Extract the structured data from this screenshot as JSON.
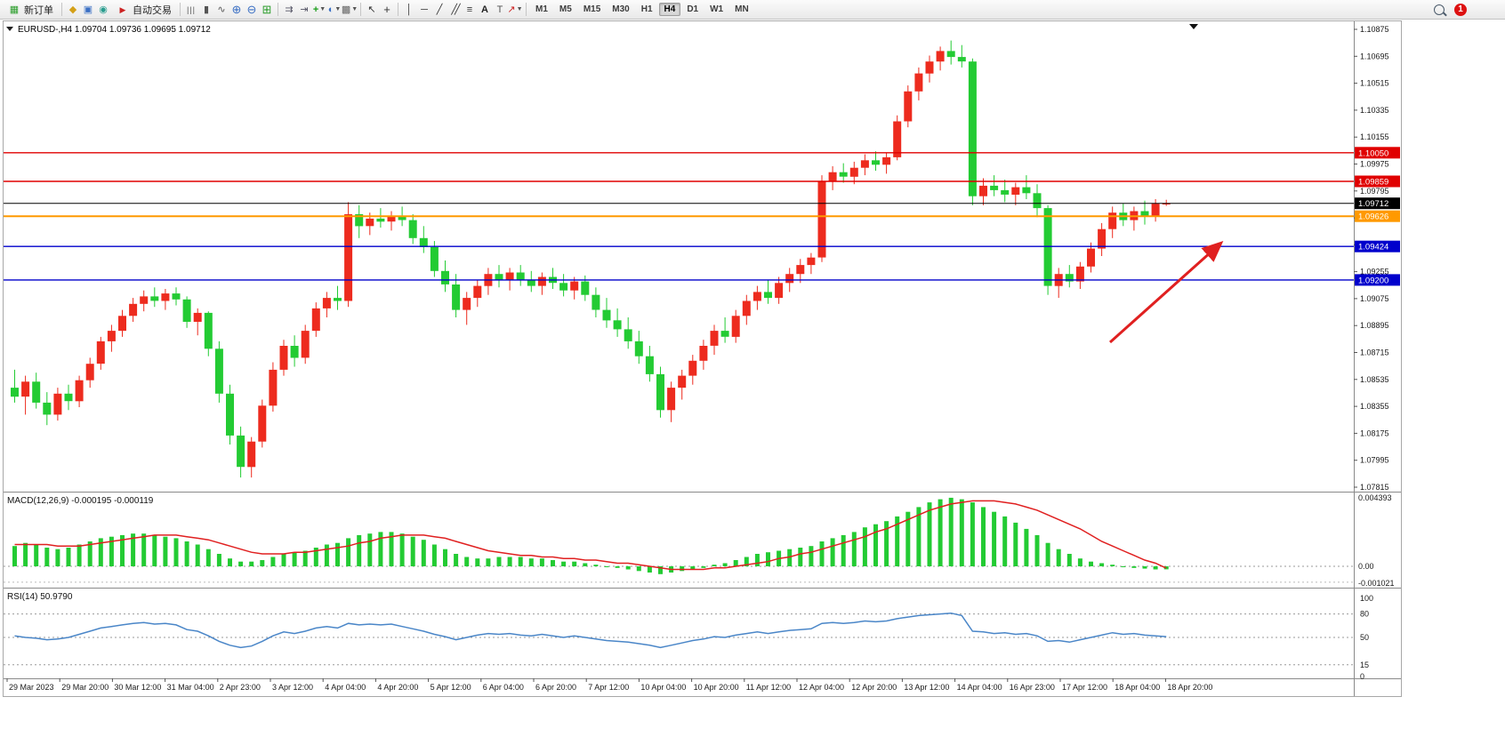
{
  "toolbar": {
    "new_order_label": "新订单",
    "autotrading_label": "自动交易",
    "text_tool_label": "A",
    "label_tool_label": "T",
    "timeframes": [
      "M1",
      "M5",
      "M15",
      "M30",
      "H1",
      "H4",
      "D1",
      "W1",
      "MN"
    ],
    "active_timeframe": "H4",
    "notification_count": "1"
  },
  "chart_data": {
    "type": "candlestick",
    "symbol_title": "EURUSD-,H4",
    "ohlc_text": "1.09704 1.09736 1.09695 1.09712",
    "current_price": 1.09712,
    "price_axis": {
      "min": 1.07815,
      "max": 1.10875,
      "ticks": [
        "1.10875",
        "1.10695",
        "1.10515",
        "1.10335",
        "1.10155",
        "1.09975",
        "1.09795",
        "1.09615",
        "1.09435",
        "1.09255",
        "1.09075",
        "1.08895",
        "1.08715",
        "1.08535",
        "1.08355",
        "1.08175",
        "1.07995",
        "1.07815"
      ]
    },
    "time_labels": [
      "29 Mar 2023",
      "29 Mar 20:00",
      "30 Mar 12:00",
      "31 Mar 04:00",
      "2 Apr 23:00",
      "3 Apr 12:00",
      "4 Apr 04:00",
      "4 Apr 20:00",
      "5 Apr 12:00",
      "6 Apr 04:00",
      "6 Apr 20:00",
      "7 Apr 12:00",
      "10 Apr 04:00",
      "10 Apr 20:00",
      "11 Apr 12:00",
      "12 Apr 04:00",
      "12 Apr 20:00",
      "13 Apr 12:00",
      "14 Apr 04:00",
      "16 Apr 23:00",
      "17 Apr 12:00",
      "18 Apr 04:00",
      "18 Apr 20:00"
    ],
    "levels": [
      {
        "label": "1.10050",
        "value": 1.1005,
        "color": "#e00000",
        "width": 1.4
      },
      {
        "label": "1.09859",
        "value": 1.09859,
        "color": "#e00000",
        "width": 1.4
      },
      {
        "label": "1.09712",
        "value": 1.09712,
        "color": "#000000",
        "width": 1,
        "current": true
      },
      {
        "label": "1.09626",
        "value": 1.09626,
        "color": "#ff9900",
        "width": 2
      },
      {
        "label": "1.09424",
        "value": 1.09424,
        "color": "#0000cc",
        "width": 1.4
      },
      {
        "label": "1.09200",
        "value": 1.092,
        "color": "#0000cc",
        "width": 1.4
      }
    ],
    "annotations": {
      "trend_arrow": {
        "from": [
          1248,
          385
        ],
        "to": [
          1372,
          274
        ]
      }
    },
    "candles": [
      [
        1.0848,
        1.086,
        1.0838,
        1.0842
      ],
      [
        1.0842,
        1.0856,
        1.083,
        1.0852
      ],
      [
        1.0852,
        1.0858,
        1.0834,
        1.0838
      ],
      [
        1.0838,
        1.0845,
        1.0823,
        1.083
      ],
      [
        1.083,
        1.0848,
        1.0826,
        1.0844
      ],
      [
        1.0844,
        1.085,
        1.0833,
        1.0839
      ],
      [
        1.0839,
        1.0856,
        1.0835,
        1.0853
      ],
      [
        1.0853,
        1.0868,
        1.0848,
        1.0864
      ],
      [
        1.0864,
        1.0882,
        1.086,
        1.0879
      ],
      [
        1.0879,
        1.089,
        1.0872,
        1.0886
      ],
      [
        1.0886,
        1.09,
        1.0882,
        1.0896
      ],
      [
        1.0896,
        1.0908,
        1.0892,
        1.0904
      ],
      [
        1.0904,
        1.0913,
        1.0899,
        1.0909
      ],
      [
        1.0909,
        1.0915,
        1.0902,
        1.0906
      ],
      [
        1.0906,
        1.0914,
        1.09,
        1.0911
      ],
      [
        1.0911,
        1.0915,
        1.0903,
        1.0907
      ],
      [
        1.0907,
        1.0909,
        1.0888,
        1.0892
      ],
      [
        1.0892,
        1.0901,
        1.0883,
        1.0898
      ],
      [
        1.0898,
        1.0899,
        1.0869,
        1.0874
      ],
      [
        1.0874,
        1.0879,
        1.0838,
        1.0844
      ],
      [
        1.0844,
        1.085,
        1.081,
        1.0816
      ],
      [
        1.0816,
        1.0822,
        1.0788,
        1.0795
      ],
      [
        1.0795,
        1.0815,
        1.0788,
        1.0812
      ],
      [
        1.0812,
        1.084,
        1.0808,
        1.0836
      ],
      [
        1.0836,
        1.0865,
        1.0832,
        1.086
      ],
      [
        1.086,
        1.088,
        1.0856,
        1.0876
      ],
      [
        1.0876,
        1.0883,
        1.0862,
        1.0868
      ],
      [
        1.0868,
        1.089,
        1.0864,
        1.0886
      ],
      [
        1.0886,
        1.0905,
        1.0882,
        1.0901
      ],
      [
        1.0901,
        1.0912,
        1.0895,
        1.0908
      ],
      [
        1.0908,
        1.0916,
        1.09,
        1.0906
      ],
      [
        1.0906,
        1.0972,
        1.0902,
        1.0964
      ],
      [
        1.0964,
        1.097,
        1.0948,
        1.0956
      ],
      [
        1.0956,
        1.0965,
        1.095,
        1.0961
      ],
      [
        1.0961,
        1.0968,
        1.0955,
        1.0959
      ],
      [
        1.0959,
        1.0966,
        1.0953,
        1.0963
      ],
      [
        1.0963,
        1.0969,
        1.0956,
        1.096
      ],
      [
        1.096,
        1.0964,
        1.0944,
        1.0948
      ],
      [
        1.0948,
        1.0956,
        1.0938,
        1.0942
      ],
      [
        1.0942,
        1.0946,
        1.0922,
        1.0926
      ],
      [
        1.0926,
        1.0933,
        1.0912,
        1.0917
      ],
      [
        1.0917,
        1.0924,
        1.0895,
        1.09
      ],
      [
        1.09,
        1.0912,
        1.089,
        1.0908
      ],
      [
        1.0908,
        1.092,
        1.0902,
        1.0916
      ],
      [
        1.0916,
        1.0928,
        1.091,
        1.0924
      ],
      [
        1.0924,
        1.093,
        1.0915,
        1.092
      ],
      [
        1.092,
        1.0928,
        1.0913,
        1.0925
      ],
      [
        1.0925,
        1.093,
        1.0916,
        1.092
      ],
      [
        1.092,
        1.0926,
        1.0912,
        1.0916
      ],
      [
        1.0916,
        1.0925,
        1.091,
        1.0922
      ],
      [
        1.0922,
        1.0928,
        1.0914,
        1.0918
      ],
      [
        1.0918,
        1.0924,
        1.0909,
        1.0913
      ],
      [
        1.0913,
        1.0922,
        1.0907,
        1.0919
      ],
      [
        1.0919,
        1.0923,
        1.0906,
        1.091
      ],
      [
        1.091,
        1.0915,
        1.0895,
        1.09
      ],
      [
        1.09,
        1.0908,
        1.0888,
        1.0893
      ],
      [
        1.0893,
        1.0901,
        1.0882,
        1.0887
      ],
      [
        1.0887,
        1.0895,
        1.0874,
        1.0879
      ],
      [
        1.0879,
        1.0886,
        1.0864,
        1.0869
      ],
      [
        1.0869,
        1.0876,
        1.0852,
        1.0857
      ],
      [
        1.0857,
        1.0862,
        1.0828,
        1.0833
      ],
      [
        1.0833,
        1.0852,
        1.0825,
        1.0848
      ],
      [
        1.0848,
        1.086,
        1.084,
        1.0856
      ],
      [
        1.0856,
        1.087,
        1.085,
        1.0866
      ],
      [
        1.0866,
        1.088,
        1.086,
        1.0876
      ],
      [
        1.0876,
        1.089,
        1.087,
        1.0886
      ],
      [
        1.0886,
        1.0895,
        1.0878,
        1.0882
      ],
      [
        1.0882,
        1.09,
        1.0878,
        1.0896
      ],
      [
        1.0896,
        1.091,
        1.089,
        1.0906
      ],
      [
        1.0906,
        1.0916,
        1.09,
        1.0912
      ],
      [
        1.0912,
        1.092,
        1.0904,
        1.0908
      ],
      [
        1.0908,
        1.0922,
        1.0904,
        1.0918
      ],
      [
        1.0918,
        1.0928,
        1.0912,
        1.0924
      ],
      [
        1.0924,
        1.0934,
        1.0918,
        1.093
      ],
      [
        1.093,
        1.0938,
        1.0924,
        1.0935
      ],
      [
        1.0935,
        1.099,
        1.0932,
        1.0986
      ],
      [
        1.0986,
        1.0996,
        1.098,
        1.0992
      ],
      [
        1.0992,
        1.0998,
        1.0985,
        1.0989
      ],
      [
        1.0989,
        1.0999,
        1.0984,
        1.0995
      ],
      [
        1.0995,
        1.1004,
        1.099,
        1.1
      ],
      [
        1.1,
        1.1006,
        1.0993,
        1.0997
      ],
      [
        1.0997,
        1.1005,
        1.0991,
        1.1002
      ],
      [
        1.1002,
        1.103,
        1.1,
        1.1026
      ],
      [
        1.1026,
        1.105,
        1.1022,
        1.1046
      ],
      [
        1.1046,
        1.1062,
        1.104,
        1.1058
      ],
      [
        1.1058,
        1.107,
        1.1052,
        1.1066
      ],
      [
        1.1066,
        1.1076,
        1.106,
        1.1073
      ],
      [
        1.1073,
        1.108,
        1.1064,
        1.1069
      ],
      [
        1.1069,
        1.1077,
        1.1062,
        1.1066
      ],
      [
        1.1066,
        1.1068,
        1.097,
        1.0976
      ],
      [
        1.0976,
        1.0988,
        1.097,
        1.0983
      ],
      [
        1.0983,
        1.099,
        1.0976,
        1.098
      ],
      [
        1.098,
        1.0987,
        1.0972,
        1.0977
      ],
      [
        1.0977,
        1.0985,
        1.097,
        1.0982
      ],
      [
        1.0982,
        1.099,
        1.0974,
        1.0978
      ],
      [
        1.0978,
        1.0984,
        1.0962,
        1.0968
      ],
      [
        1.0968,
        1.097,
        1.091,
        1.0916
      ],
      [
        1.0916,
        1.0928,
        1.0908,
        1.0924
      ],
      [
        1.0924,
        1.093,
        1.0915,
        1.0919
      ],
      [
        1.0919,
        1.0932,
        1.0914,
        1.0929
      ],
      [
        1.0929,
        1.0945,
        1.0925,
        1.0941
      ],
      [
        1.0941,
        1.0958,
        1.0936,
        1.0954
      ],
      [
        1.0954,
        1.0969,
        1.0948,
        1.0965
      ],
      [
        1.0965,
        1.0971,
        1.0956,
        1.096
      ],
      [
        1.096,
        1.0969,
        1.0953,
        1.0966
      ],
      [
        1.0966,
        1.0973,
        1.0957,
        1.0963
      ],
      [
        1.0963,
        1.0974,
        1.0959,
        1.0971
      ],
      [
        1.09704,
        1.09736,
        1.09695,
        1.09712
      ]
    ],
    "indicators": {
      "macd": {
        "label": "MACD(12,26,9)",
        "values_text": "-0.000195 -0.000119",
        "axis": [
          "0.004393",
          "0.00",
          "-0.001021"
        ],
        "range": {
          "max": 0.004393,
          "min": -0.001021
        },
        "histogram": [
          0.0013,
          0.0015,
          0.0014,
          0.0012,
          0.0011,
          0.0012,
          0.0014,
          0.0016,
          0.0018,
          0.0019,
          0.002,
          0.0021,
          0.0021,
          0.002,
          0.0019,
          0.0018,
          0.0016,
          0.0014,
          0.0011,
          0.0008,
          0.0005,
          0.0003,
          0.0003,
          0.0004,
          0.0006,
          0.0008,
          0.0009,
          0.001,
          0.0012,
          0.0014,
          0.0015,
          0.0018,
          0.002,
          0.0021,
          0.0022,
          0.0022,
          0.0021,
          0.0019,
          0.0017,
          0.0014,
          0.0011,
          0.0008,
          0.0006,
          0.0005,
          0.0005,
          0.0006,
          0.0006,
          0.0006,
          0.0005,
          0.0005,
          0.0004,
          0.0003,
          0.0003,
          0.0002,
          0.0001,
          0.0,
          -0.0001,
          -0.0002,
          -0.0003,
          -0.0004,
          -0.0005,
          -0.0004,
          -0.0003,
          -0.0002,
          -0.0001,
          0.0001,
          0.0002,
          0.0004,
          0.0006,
          0.0008,
          0.0009,
          0.001,
          0.0011,
          0.0012,
          0.0013,
          0.0016,
          0.0018,
          0.002,
          0.0022,
          0.0025,
          0.0027,
          0.0029,
          0.0032,
          0.0035,
          0.0038,
          0.0041,
          0.0043,
          0.0044,
          0.0043,
          0.0041,
          0.0038,
          0.0035,
          0.0032,
          0.0028,
          0.0024,
          0.002,
          0.0015,
          0.0011,
          0.0008,
          0.0005,
          0.0003,
          0.0002,
          0.0001,
          0.0,
          -0.0001,
          -0.00015,
          -0.0002,
          -0.000195
        ],
        "signal": [
          0.0014,
          0.0014,
          0.0014,
          0.0014,
          0.0013,
          0.0013,
          0.0013,
          0.0014,
          0.0015,
          0.0016,
          0.0017,
          0.0018,
          0.0019,
          0.002,
          0.002,
          0.002,
          0.0019,
          0.0018,
          0.0017,
          0.0015,
          0.0013,
          0.0011,
          0.0009,
          0.0008,
          0.0008,
          0.0008,
          0.0009,
          0.0009,
          0.001,
          0.0011,
          0.0012,
          0.0013,
          0.0015,
          0.0016,
          0.0018,
          0.0019,
          0.002,
          0.002,
          0.002,
          0.0019,
          0.0018,
          0.0016,
          0.0014,
          0.0012,
          0.001,
          0.0009,
          0.0008,
          0.0007,
          0.0007,
          0.0006,
          0.0006,
          0.0005,
          0.0005,
          0.0004,
          0.0004,
          0.0003,
          0.0002,
          0.0002,
          0.0001,
          0.0,
          -0.0001,
          -0.0002,
          -0.0002,
          -0.0002,
          -0.0002,
          -0.0001,
          -0.0001,
          0.0,
          0.0001,
          0.0002,
          0.0003,
          0.0005,
          0.0006,
          0.0008,
          0.0009,
          0.0011,
          0.0013,
          0.0015,
          0.0017,
          0.0019,
          0.0022,
          0.0024,
          0.0027,
          0.003,
          0.0033,
          0.0036,
          0.0038,
          0.004,
          0.0041,
          0.0042,
          0.0042,
          0.0042,
          0.0041,
          0.004,
          0.0038,
          0.0036,
          0.0033,
          0.003,
          0.0027,
          0.0024,
          0.002,
          0.0016,
          0.0013,
          0.001,
          0.0007,
          0.0004,
          0.0002,
          -0.000119
        ]
      },
      "rsi": {
        "label": "RSI(14)",
        "value_text": "50.9790",
        "axis": [
          "100",
          "80",
          "50",
          "15",
          "0"
        ],
        "levels": [
          80,
          50,
          15
        ],
        "values": [
          52,
          50,
          49,
          47,
          48,
          50,
          54,
          58,
          62,
          64,
          66,
          68,
          69,
          67,
          68,
          66,
          60,
          58,
          52,
          45,
          40,
          37,
          39,
          45,
          52,
          57,
          55,
          58,
          62,
          64,
          62,
          68,
          66,
          67,
          66,
          67,
          64,
          61,
          58,
          54,
          51,
          47,
          50,
          53,
          55,
          54,
          55,
          53,
          52,
          54,
          52,
          50,
          52,
          50,
          48,
          46,
          45,
          44,
          42,
          40,
          37,
          40,
          43,
          46,
          48,
          51,
          50,
          53,
          55,
          57,
          55,
          57,
          59,
          60,
          61,
          68,
          69,
          68,
          69,
          71,
          70,
          71,
          74,
          76,
          78,
          79,
          80,
          81,
          78,
          58,
          57,
          55,
          56,
          54,
          55,
          52,
          45,
          46,
          44,
          47,
          50,
          53,
          56,
          54,
          55,
          53,
          52,
          50.98
        ]
      }
    },
    "colors": {
      "up": "#ed2b1e",
      "down": "#23cb33",
      "macd_hist": "#23cb33",
      "macd_signal": "#e02020",
      "rsi_line": "#4a86c8",
      "arrow": "#e02020"
    }
  }
}
